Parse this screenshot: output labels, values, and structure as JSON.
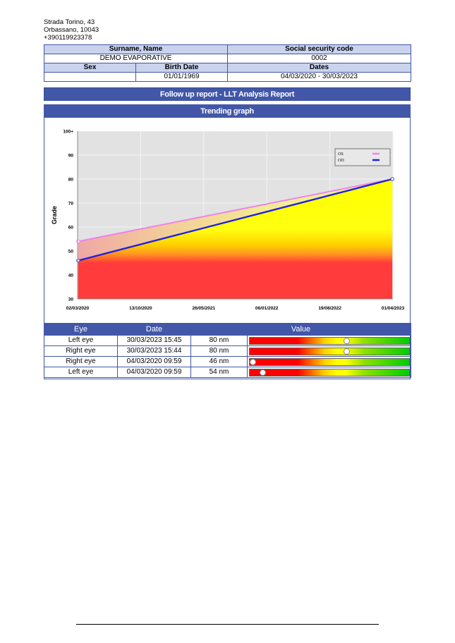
{
  "address": {
    "street": "Strada Torino, 43",
    "city": "Orbassano, 10043",
    "phone": "+390119923378"
  },
  "patient": {
    "surname_name_label": "Surname, Name",
    "surname_name": "DEMO EVAPORATIVE",
    "ssc_label": "Social security code",
    "ssc": "0002",
    "sex_label": "Sex",
    "sex": "",
    "birth_label": "Birth Date",
    "birth": "01/01/1969",
    "dates_label": "Dates",
    "dates": "04/03/2020 - 30/03/2023"
  },
  "report_title": "Follow up report - LLT Analysis Report",
  "trending_title": "Trending graph",
  "chart_data": {
    "type": "line",
    "ylabel": "Grade",
    "xlabel": "",
    "y_ticks": [
      "30",
      "40",
      "50",
      "60",
      "70",
      "80",
      "90",
      "100+"
    ],
    "ylim": [
      30,
      100
    ],
    "x_ticks": [
      "02/03/2020",
      "13/10/2020",
      "26/05/2021",
      "06/01/2022",
      "19/08/2022",
      "01/04/2023"
    ],
    "legend_position": "top-right",
    "grid": true,
    "series": [
      {
        "name": "OS",
        "color": "#ee82ee",
        "points": [
          [
            "04/03/2020",
            54
          ],
          [
            "30/03/2023",
            80
          ]
        ]
      },
      {
        "name": "OD",
        "color": "#2222dd",
        "points": [
          [
            "04/03/2020",
            46
          ],
          [
            "30/03/2023",
            80
          ]
        ]
      }
    ]
  },
  "results": {
    "headers": {
      "eye": "Eye",
      "date": "Date",
      "value": "Value"
    },
    "rows": [
      {
        "eye": "Left eye",
        "date": "30/03/2023 15:45",
        "value": "80 nm",
        "level": 0.61
      },
      {
        "eye": "Right eye",
        "date": "30/03/2023 15:44",
        "value": "80 nm",
        "level": 0.61
      },
      {
        "eye": "Right eye",
        "date": "04/03/2020 09:59",
        "value": "46 nm",
        "level": 0.02
      },
      {
        "eye": "Left eye",
        "date": "04/03/2020 09:59",
        "value": "54 nm",
        "level": 0.08
      }
    ]
  }
}
